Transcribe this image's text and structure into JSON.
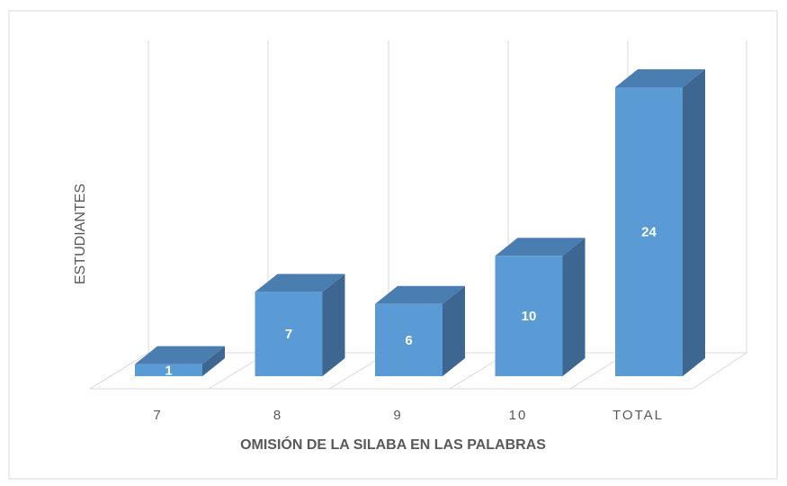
{
  "chart_data": {
    "type": "bar3d",
    "y_label": "ESTUDIANTES",
    "x_label": "OMISIÓN DE LA SILABA EN LAS PALABRAS",
    "categories": [
      "7",
      "8",
      "9",
      "10",
      "TOTAL"
    ],
    "values": [
      1,
      7,
      6,
      10,
      24
    ],
    "color": "#5b9bd5"
  }
}
